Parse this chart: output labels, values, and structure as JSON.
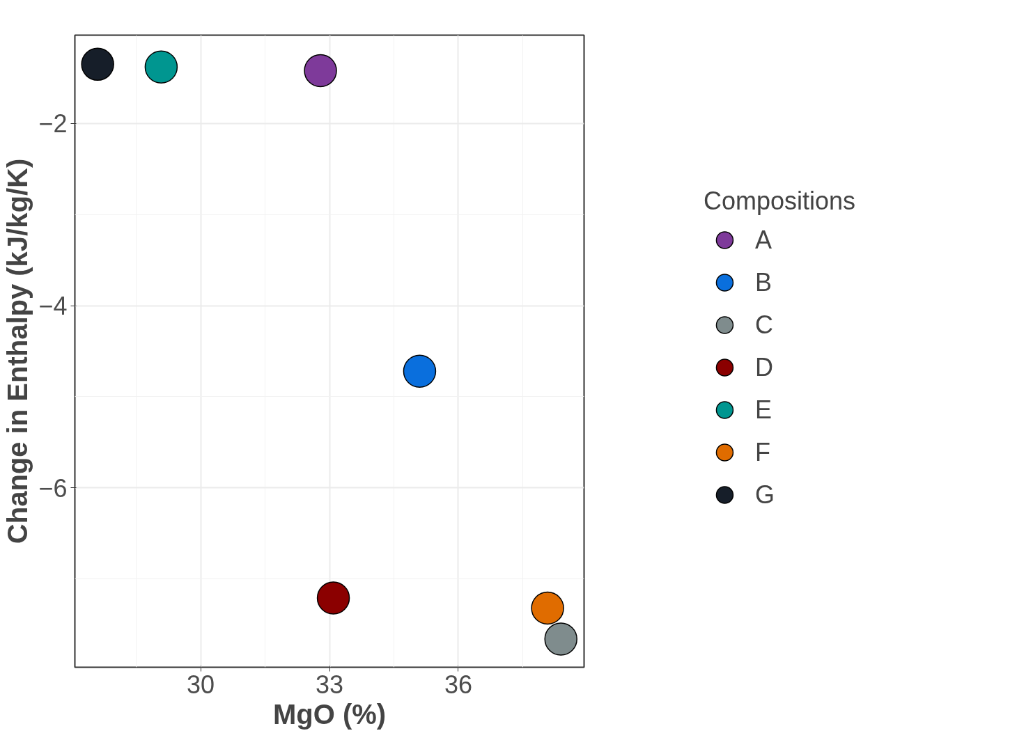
{
  "chart_data": {
    "type": "scatter",
    "xlabel": "MgO (%)",
    "ylabel": "Change in Enthalpy (kJ/kg/K)",
    "legend_title": "Compositions",
    "legend": "right",
    "grid": true,
    "marker": "circle",
    "xlim": [
      27.07,
      38.93
    ],
    "ylim": [
      -7.97,
      -1.03
    ],
    "xticks": [
      30,
      33,
      36
    ],
    "yticks": [
      -6,
      -4,
      -2
    ],
    "series": [
      {
        "name": "A",
        "color": "#7e3a9a",
        "x": [
          32.79
        ],
        "values": [
          -1.42
        ]
      },
      {
        "name": "B",
        "color": "#0a6fdd",
        "x": [
          35.1
        ],
        "values": [
          -4.72
        ]
      },
      {
        "name": "C",
        "color": "#7f8c8d",
        "x": [
          38.39
        ],
        "values": [
          -7.66
        ]
      },
      {
        "name": "D",
        "color": "#8b0000",
        "x": [
          33.09
        ],
        "values": [
          -7.21
        ]
      },
      {
        "name": "E",
        "color": "#009690",
        "x": [
          29.08
        ],
        "values": [
          -1.38
        ]
      },
      {
        "name": "F",
        "color": "#e06c00",
        "x": [
          38.08
        ],
        "values": [
          -7.32
        ]
      },
      {
        "name": "G",
        "color": "#161e29",
        "x": [
          27.6
        ],
        "values": [
          -1.35
        ]
      }
    ]
  }
}
